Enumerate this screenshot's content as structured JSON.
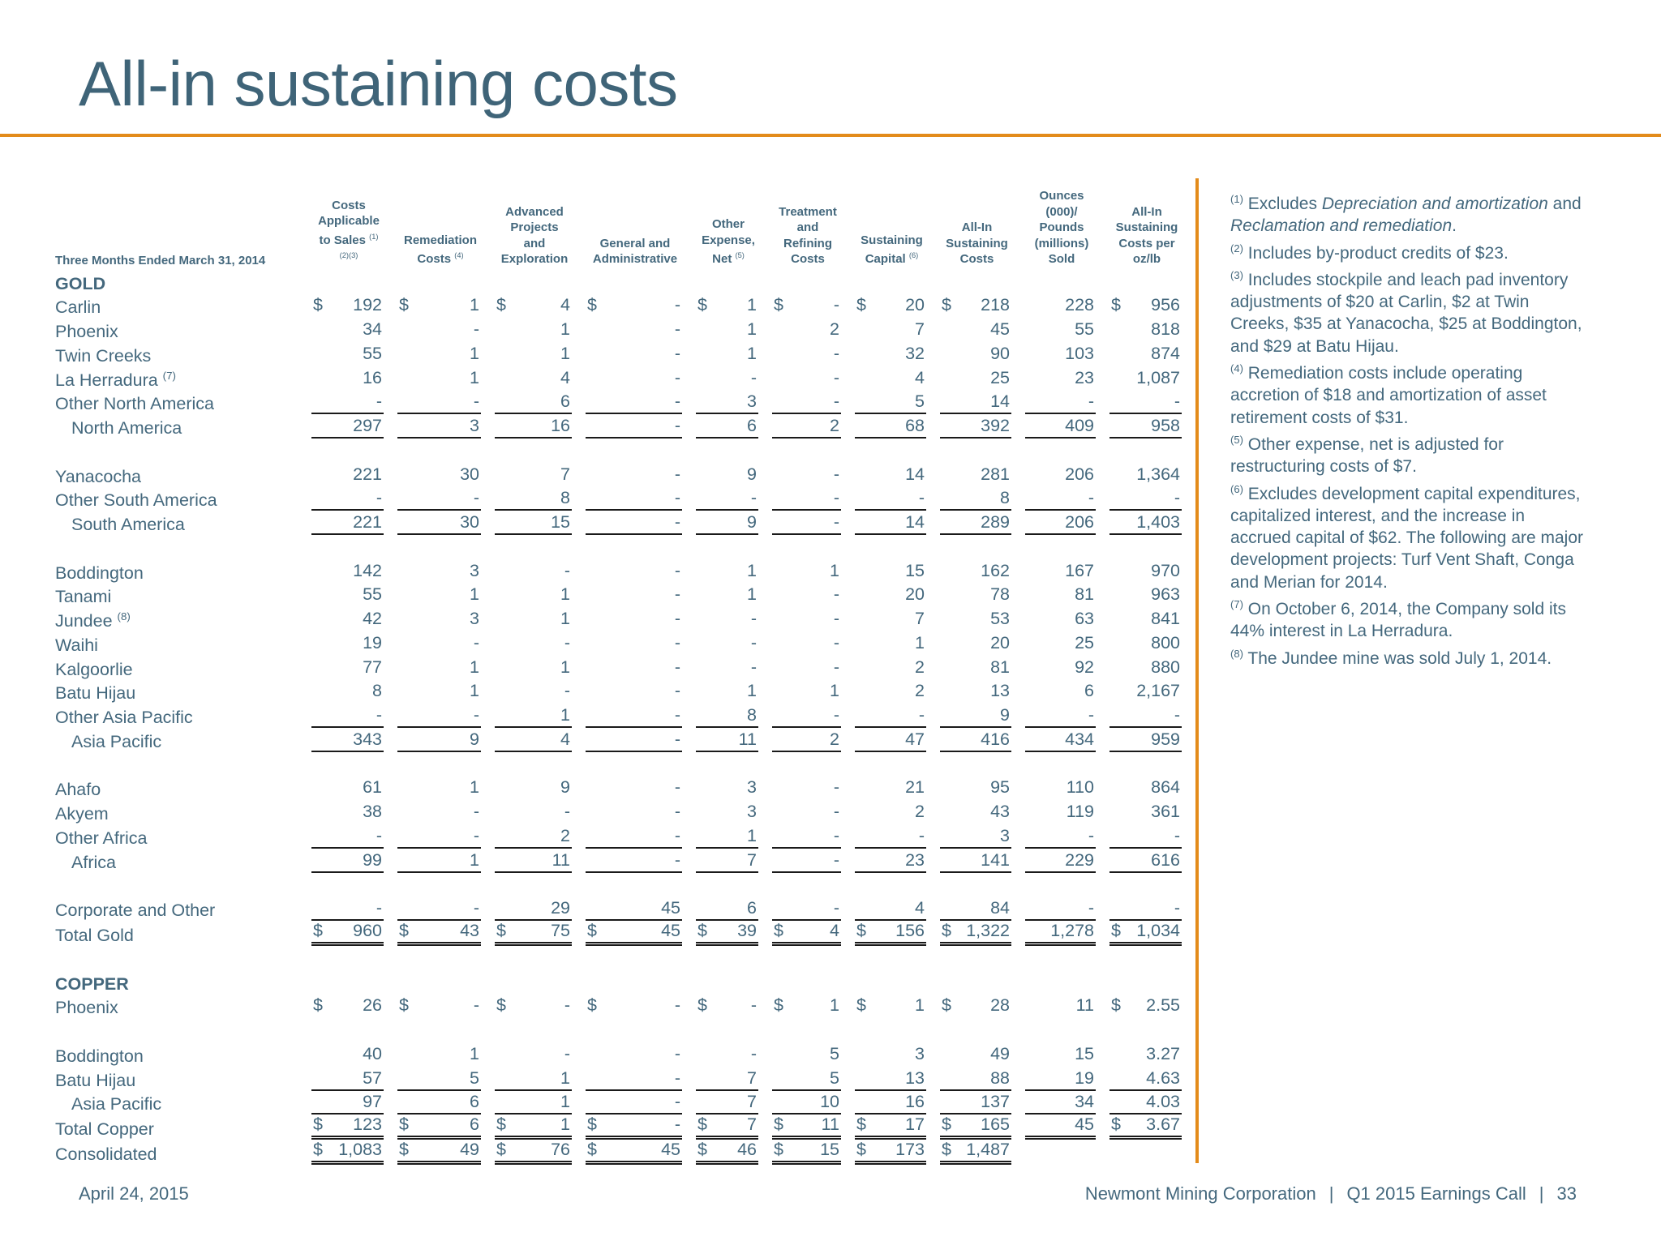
{
  "title": "All-in sustaining costs",
  "table": {
    "period_label": "Three Months Ended March 31, 2014",
    "columns": [
      {
        "lines": [
          "Costs",
          "Applicable",
          "to Sales"
        ],
        "sup": "(1)",
        "sup2": "(2)(3)"
      },
      {
        "lines": [
          "Remediation",
          "Costs"
        ],
        "sup": "(4)"
      },
      {
        "lines": [
          "Advanced",
          "Projects",
          "and",
          "Exploration"
        ],
        "sup": ""
      },
      {
        "lines": [
          "General and",
          "Administrative"
        ],
        "sup": ""
      },
      {
        "lines": [
          "Other",
          "Expense,",
          "Net"
        ],
        "sup": "(5)"
      },
      {
        "lines": [
          "Treatment",
          "and",
          "Refining",
          "Costs"
        ],
        "sup": ""
      },
      {
        "lines": [
          "Sustaining",
          "Capital"
        ],
        "sup": "(6)"
      },
      {
        "lines": [
          "All-In",
          "Sustaining",
          "Costs"
        ],
        "sup": ""
      },
      {
        "lines": [
          "Ounces",
          "(000)/",
          "Pounds",
          "(millions)",
          "Sold"
        ],
        "sup": ""
      },
      {
        "lines": [
          "All-In",
          "Sustaining",
          "Costs per",
          "oz/lb"
        ],
        "sup": ""
      }
    ],
    "rows": [
      {
        "type": "header",
        "label": "GOLD"
      },
      {
        "label": "Carlin",
        "cur": true,
        "values": [
          "192",
          "1",
          "4",
          "-",
          "1",
          "-",
          "20",
          "218",
          "228",
          "956"
        ]
      },
      {
        "label": "Phoenix",
        "values": [
          "34",
          "-",
          "1",
          "-",
          "1",
          "2",
          "7",
          "45",
          "55",
          "818"
        ]
      },
      {
        "label": "Twin Creeks",
        "values": [
          "55",
          "1",
          "1",
          "-",
          "1",
          "-",
          "32",
          "90",
          "103",
          "874"
        ]
      },
      {
        "label": "La Herradura",
        "sup": "(7)",
        "values": [
          "16",
          "1",
          "4",
          "-",
          "-",
          "-",
          "4",
          "25",
          "23",
          "1,087"
        ]
      },
      {
        "label": "Other North America",
        "underline": "single",
        "values": [
          "-",
          "-",
          "6",
          "-",
          "3",
          "-",
          "5",
          "14",
          "-",
          "-"
        ]
      },
      {
        "label": "North America",
        "sub": true,
        "underline": "single",
        "values": [
          "297",
          "3",
          "16",
          "-",
          "6",
          "2",
          "68",
          "392",
          "409",
          "958"
        ]
      },
      {
        "type": "blank"
      },
      {
        "label": "Yanacocha",
        "values": [
          "221",
          "30",
          "7",
          "-",
          "9",
          "-",
          "14",
          "281",
          "206",
          "1,364"
        ]
      },
      {
        "label": "Other South America",
        "underline": "single",
        "values": [
          "-",
          "-",
          "8",
          "-",
          "-",
          "-",
          "-",
          "8",
          "-",
          "-"
        ]
      },
      {
        "label": "South America",
        "sub": true,
        "underline": "single",
        "values": [
          "221",
          "30",
          "15",
          "-",
          "9",
          "-",
          "14",
          "289",
          "206",
          "1,403"
        ]
      },
      {
        "type": "blank"
      },
      {
        "label": "Boddington",
        "values": [
          "142",
          "3",
          "-",
          "-",
          "1",
          "1",
          "15",
          "162",
          "167",
          "970"
        ]
      },
      {
        "label": "Tanami",
        "values": [
          "55",
          "1",
          "1",
          "-",
          "1",
          "-",
          "20",
          "78",
          "81",
          "963"
        ]
      },
      {
        "label": "Jundee",
        "sup": "(8)",
        "values": [
          "42",
          "3",
          "1",
          "-",
          "-",
          "-",
          "7",
          "53",
          "63",
          "841"
        ]
      },
      {
        "label": "Waihi",
        "values": [
          "19",
          "-",
          "-",
          "-",
          "-",
          "-",
          "1",
          "20",
          "25",
          "800"
        ]
      },
      {
        "label": "Kalgoorlie",
        "values": [
          "77",
          "1",
          "1",
          "-",
          "-",
          "-",
          "2",
          "81",
          "92",
          "880"
        ]
      },
      {
        "label": "Batu Hijau",
        "values": [
          "8",
          "1",
          "-",
          "-",
          "1",
          "1",
          "2",
          "13",
          "6",
          "2,167"
        ]
      },
      {
        "label": "Other Asia Pacific",
        "underline": "single",
        "values": [
          "-",
          "-",
          "1",
          "-",
          "8",
          "-",
          "-",
          "9",
          "-",
          "-"
        ]
      },
      {
        "label": "Asia Pacific",
        "sub": true,
        "underline": "single",
        "values": [
          "343",
          "9",
          "4",
          "-",
          "11",
          "2",
          "47",
          "416",
          "434",
          "959"
        ]
      },
      {
        "type": "blank"
      },
      {
        "label": "Ahafo",
        "values": [
          "61",
          "1",
          "9",
          "-",
          "3",
          "-",
          "21",
          "95",
          "110",
          "864"
        ]
      },
      {
        "label": "Akyem",
        "values": [
          "38",
          "-",
          "-",
          "-",
          "3",
          "-",
          "2",
          "43",
          "119",
          "361"
        ]
      },
      {
        "label": "Other Africa",
        "underline": "single",
        "values": [
          "-",
          "-",
          "2",
          "-",
          "1",
          "-",
          "-",
          "3",
          "-",
          "-"
        ]
      },
      {
        "label": "Africa",
        "sub": true,
        "underline": "single",
        "values": [
          "99",
          "1",
          "11",
          "-",
          "7",
          "-",
          "23",
          "141",
          "229",
          "616"
        ]
      },
      {
        "type": "blank"
      },
      {
        "label": "Corporate and Other",
        "underline": "single",
        "values": [
          "-",
          "-",
          "29",
          "45",
          "6",
          "-",
          "4",
          "84",
          "-",
          "-"
        ]
      },
      {
        "label": "Total Gold",
        "cur": true,
        "underline": "double",
        "values": [
          "960",
          "43",
          "75",
          "45",
          "39",
          "4",
          "156",
          "1,322",
          "1,278",
          "1,034"
        ]
      },
      {
        "type": "blank"
      },
      {
        "type": "header",
        "label": "COPPER"
      },
      {
        "label": "Phoenix",
        "cur": true,
        "values": [
          "26",
          "-",
          "-",
          "-",
          "-",
          "1",
          "1",
          "28",
          "11",
          "2.55"
        ]
      },
      {
        "type": "blank"
      },
      {
        "label": "Boddington",
        "values": [
          "40",
          "1",
          "-",
          "-",
          "-",
          "5",
          "3",
          "49",
          "15",
          "3.27"
        ]
      },
      {
        "label": "Batu Hijau",
        "underline": "single",
        "values": [
          "57",
          "5",
          "1",
          "-",
          "7",
          "5",
          "13",
          "88",
          "19",
          "4.63"
        ]
      },
      {
        "label": "Asia Pacific",
        "sub": true,
        "underline": "single",
        "values": [
          "97",
          "6",
          "1",
          "-",
          "7",
          "10",
          "16",
          "137",
          "34",
          "4.03"
        ]
      },
      {
        "label": "Total Copper",
        "cur": true,
        "underline": "double",
        "values": [
          "123",
          "6",
          "1",
          "-",
          "7",
          "11",
          "17",
          "165",
          "45",
          "3.67"
        ]
      },
      {
        "label": "Consolidated",
        "cur": true,
        "underline": "double",
        "partial": 8,
        "values": [
          "1,083",
          "49",
          "76",
          "45",
          "46",
          "15",
          "173",
          "1,487"
        ]
      }
    ]
  },
  "notes": [
    {
      "sup": "(1)",
      "parts": [
        [
          "Excludes ",
          false
        ],
        [
          "Depreciation and amortization",
          true
        ],
        [
          " and ",
          false
        ],
        [
          "Reclamation and remediation",
          true
        ],
        [
          ".",
          false
        ]
      ]
    },
    {
      "sup": "(2)",
      "parts": [
        [
          "Includes by-product credits of $23.",
          false
        ]
      ]
    },
    {
      "sup": "(3)",
      "parts": [
        [
          "Includes stockpile and leach pad inventory adjustments of $20 at Carlin, $2 at Twin Creeks, $35 at Yanacocha, $25 at Boddington, and $29 at Batu Hijau.",
          false
        ]
      ]
    },
    {
      "sup": "(4)",
      "parts": [
        [
          "Remediation costs include operating accretion of $18 and amortization of asset retirement costs of $31.",
          false
        ]
      ]
    },
    {
      "sup": "(5)",
      "parts": [
        [
          "Other expense, net is adjusted for restructuring costs of $7.",
          false
        ]
      ]
    },
    {
      "sup": "(6)",
      "parts": [
        [
          "Excludes development capital expenditures, capitalized interest, and the increase in accrued capital of $62. The following are major development projects: Turf Vent Shaft, Conga and Merian for 2014.",
          false
        ]
      ]
    },
    {
      "sup": "(7)",
      "parts": [
        [
          "On October 6, 2014, the Company sold its 44% interest in La Herradura.",
          false
        ]
      ]
    },
    {
      "sup": "(8)",
      "parts": [
        [
          "The Jundee mine was sold July 1, 2014.",
          false
        ]
      ]
    }
  ],
  "footer": {
    "date": "April 24, 2015",
    "company": "Newmont Mining Corporation",
    "event": "Q1 2015 Earnings Call",
    "page": "33",
    "separator": "|"
  },
  "colors": {
    "accent": "#e38b1a",
    "text": "#44687d",
    "title": "#3f6478"
  }
}
